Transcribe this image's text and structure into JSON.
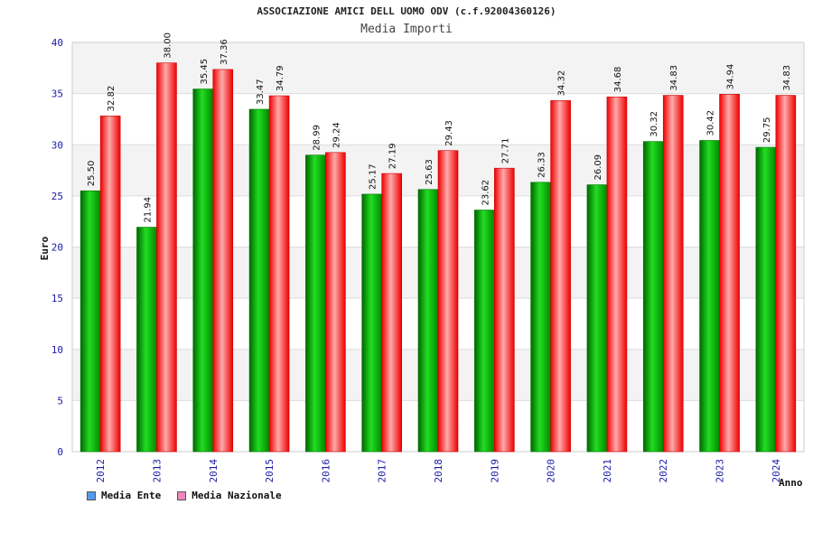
{
  "header": {
    "title": "ASSOCIAZIONE AMICI DELL UOMO ODV (c.f.92004360126)",
    "subtitle": "Media Importi"
  },
  "legend": {
    "items": [
      {
        "label": "Media Ente",
        "color": "#5599ee"
      },
      {
        "label": "Media Nazionale",
        "color": "#ee88bb"
      }
    ]
  },
  "chart_data": {
    "type": "bar",
    "title": "ASSOCIAZIONE AMICI DELL UOMO ODV (c.f.92004360126)",
    "subtitle": "Media Importi",
    "xlabel": "Anno",
    "ylabel": "Euro",
    "ylim": [
      0,
      40
    ],
    "yticks": [
      0,
      5,
      10,
      15,
      20,
      25,
      30,
      35,
      40
    ],
    "grid": true,
    "legend_position": "bottom-left",
    "categories": [
      "2012",
      "2013",
      "2014",
      "2015",
      "2016",
      "2017",
      "2018",
      "2019",
      "2020",
      "2021",
      "2022",
      "2023",
      "2024"
    ],
    "series": [
      {
        "name": "Media Ente",
        "color": "#00aa00",
        "labels": [
          "25.50",
          "21.94",
          "35.45",
          "33.47",
          "28.99",
          "25.17",
          "25.63",
          "23.62",
          "26.33",
          "26.09",
          "30.32",
          "30.42",
          "29.75"
        ],
        "values": [
          25.5,
          21.94,
          35.45,
          33.47,
          28.99,
          25.17,
          25.63,
          23.62,
          26.33,
          26.09,
          30.32,
          30.42,
          29.75
        ]
      },
      {
        "name": "Media Nazionale",
        "color": "#ee1111",
        "labels": [
          "32.82",
          "38.00",
          "37.36",
          "34.79",
          "29.24",
          "27.19",
          "29.43",
          "27.71",
          "34.32",
          "34.68",
          "34.83",
          "34.94",
          "34.83"
        ],
        "values": [
          32.82,
          38.0,
          37.36,
          34.79,
          29.24,
          27.19,
          29.43,
          27.71,
          34.32,
          34.68,
          34.83,
          34.94,
          34.83
        ]
      }
    ]
  }
}
